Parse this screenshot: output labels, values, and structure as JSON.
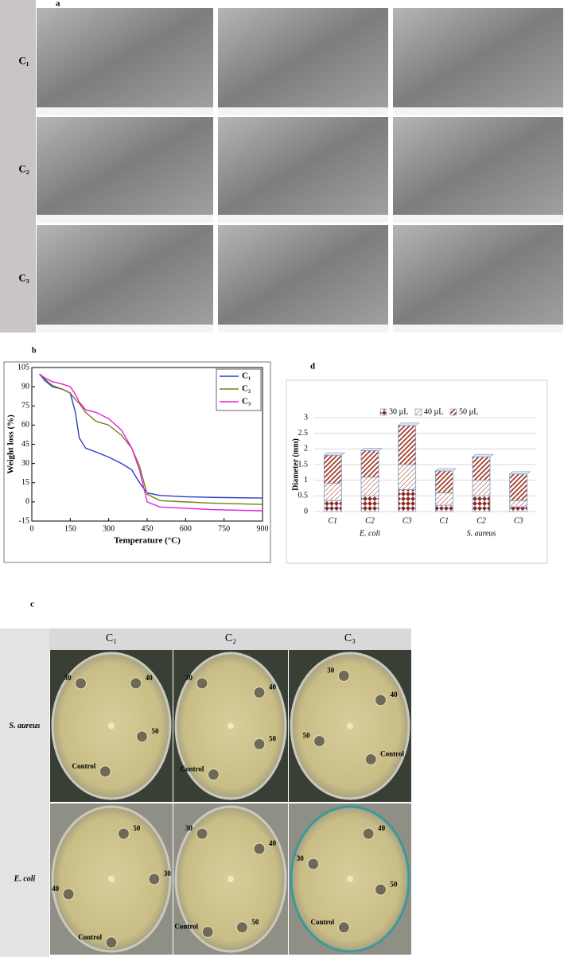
{
  "panels": {
    "a": "a",
    "b": "b",
    "c": "c",
    "d": "d"
  },
  "sem": {
    "rows": [
      "C₁",
      "C₂",
      "C₃"
    ]
  },
  "photos": {
    "columns": [
      "C₁",
      "C₂",
      "C₃"
    ],
    "rows": [
      "S. aureus",
      "E. coli"
    ],
    "cells": [
      [
        [
          "30",
          "40",
          "50",
          "Control"
        ],
        [
          "30",
          "40",
          "50",
          "Control"
        ],
        [
          "30",
          "40",
          "50",
          "Control"
        ]
      ],
      [
        [
          "50",
          "30",
          "40",
          "Control"
        ],
        [
          "30",
          "40",
          "50",
          "Control"
        ],
        [
          "30",
          "40",
          "50",
          "Control"
        ]
      ]
    ]
  },
  "chart_data": [
    {
      "type": "line",
      "xlabel": "Temperature (°C)",
      "ylabel": "Weight loss (%)",
      "x": [
        30,
        50,
        80,
        120,
        150,
        170,
        185,
        210,
        250,
        300,
        350,
        390,
        420,
        450,
        500,
        600,
        700,
        900
      ],
      "series": [
        {
          "name": "C₁",
          "color": "#2b3fc4",
          "values": [
            100,
            95,
            90,
            88,
            85,
            70,
            50,
            42,
            39,
            35,
            30,
            25,
            15,
            7,
            5,
            4,
            3.5,
            3
          ]
        },
        {
          "name": "C₂",
          "color": "#7b7a1e",
          "values": [
            100,
            96,
            91,
            88,
            85,
            80,
            77,
            70,
            63,
            60,
            52,
            42,
            28,
            6,
            1,
            0,
            -1,
            -2
          ]
        },
        {
          "name": "C₃",
          "color": "#e81ee0",
          "values": [
            100,
            97,
            94,
            92,
            90,
            84,
            78,
            72,
            70,
            65,
            56,
            42,
            25,
            0,
            -4,
            -5,
            -6,
            -7
          ]
        }
      ],
      "xlim": [
        0,
        900
      ],
      "xticks": [
        0,
        150,
        300,
        450,
        600,
        750,
        900
      ],
      "ylim": [
        -15,
        105
      ],
      "yticks": [
        -15,
        0,
        15,
        30,
        45,
        60,
        75,
        90,
        105
      ],
      "legend": "upper right"
    },
    {
      "type": "stacked_bar",
      "ylabel": "Diameter (mm)",
      "categories": [
        "C1",
        "C2",
        "C3",
        "C1",
        "C2",
        "C3"
      ],
      "groups": [
        {
          "label": "E. coli",
          "size": 3
        },
        {
          "label": "S. aureus",
          "size": 3
        }
      ],
      "series": [
        {
          "name": "30 µL",
          "color": "#8b2a22",
          "values": [
            0.35,
            0.5,
            0.7,
            0.2,
            0.5,
            0.15
          ]
        },
        {
          "name": "40 µL",
          "color": "#c07a70",
          "values": [
            0.55,
            0.6,
            0.8,
            0.4,
            0.5,
            0.2
          ]
        },
        {
          "name": "50 µL",
          "color": "#a33d2e",
          "values": [
            0.9,
            0.85,
            1.25,
            0.7,
            0.75,
            0.85
          ]
        }
      ],
      "ylim": [
        0,
        3
      ],
      "yticks": [
        0,
        0.5,
        1,
        1.5,
        2,
        2.5,
        3
      ],
      "grid": true,
      "legend": "top"
    }
  ]
}
